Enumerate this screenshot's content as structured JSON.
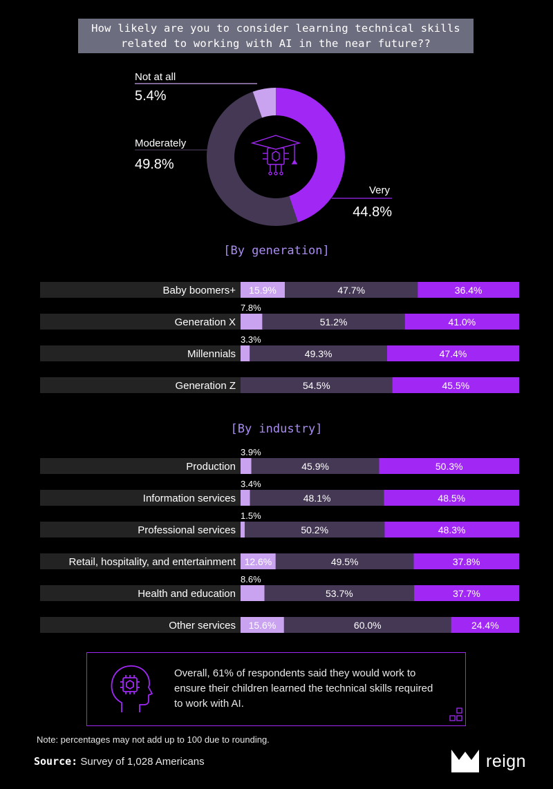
{
  "title": {
    "line1": "How likely are you to consider learning technical skills",
    "line2": "related to working with AI in the near future??"
  },
  "colors": {
    "background": "#000000",
    "not_at_all": "#c9a3f0",
    "moderately": "#453855",
    "very": "#a128f4",
    "track": "#232323",
    "section_title": "#a98df0"
  },
  "icons": {
    "donut_center": "ai-chip-graduation-cap-icon",
    "callout": "head-with-chip-icon",
    "callout_corner": "squares-decoration-icon",
    "logo": "reign-crown-logo-icon"
  },
  "donut": {
    "labels": [
      {
        "name": "Not at all",
        "value": "5.4%"
      },
      {
        "name": "Moderately",
        "value": "49.8%"
      },
      {
        "name": "Very",
        "value": "44.8%"
      }
    ]
  },
  "sections": {
    "generation": "[By generation]",
    "industry": "[By industry]"
  },
  "callout": {
    "text": "Overall, 61% of respondents said they would work to ensure their children learned the technical skills required to work with AI."
  },
  "note": "Note:  percentages may not add up to 100 due to rounding.",
  "source": {
    "label": "Source:",
    "text": "Survey of 1,028 Americans"
  },
  "logo": {
    "text": "reign"
  },
  "chart_data": [
    {
      "type": "pie",
      "title": "How likely are you to consider learning technical skills related to working with AI in the near future??",
      "categories": [
        "Very",
        "Moderately",
        "Not at all"
      ],
      "values": [
        44.8,
        49.8,
        5.4
      ]
    },
    {
      "type": "bar",
      "stacked": true,
      "orientation": "horizontal",
      "title": "[By generation]",
      "categories": [
        "Baby boomers+",
        "Generation X",
        "Millennials",
        "Generation Z"
      ],
      "series": [
        {
          "name": "Not at all",
          "values": [
            15.9,
            7.8,
            3.3,
            0
          ]
        },
        {
          "name": "Moderately",
          "values": [
            47.7,
            51.2,
            49.3,
            54.5
          ]
        },
        {
          "name": "Very",
          "values": [
            36.4,
            41.0,
            47.4,
            45.5
          ]
        }
      ]
    },
    {
      "type": "bar",
      "stacked": true,
      "orientation": "horizontal",
      "title": "[By industry]",
      "categories": [
        "Production",
        "Information services",
        "Professional services",
        "Retail, hospitality, and entertainment",
        "Health and education",
        "Other services"
      ],
      "series": [
        {
          "name": "Not at all",
          "values": [
            3.9,
            3.4,
            1.5,
            12.6,
            8.6,
            15.6
          ]
        },
        {
          "name": "Moderately",
          "values": [
            45.9,
            48.1,
            50.2,
            49.5,
            53.7,
            60.0
          ]
        },
        {
          "name": "Very",
          "values": [
            50.3,
            48.5,
            48.3,
            37.8,
            37.7,
            24.4
          ]
        }
      ]
    }
  ]
}
